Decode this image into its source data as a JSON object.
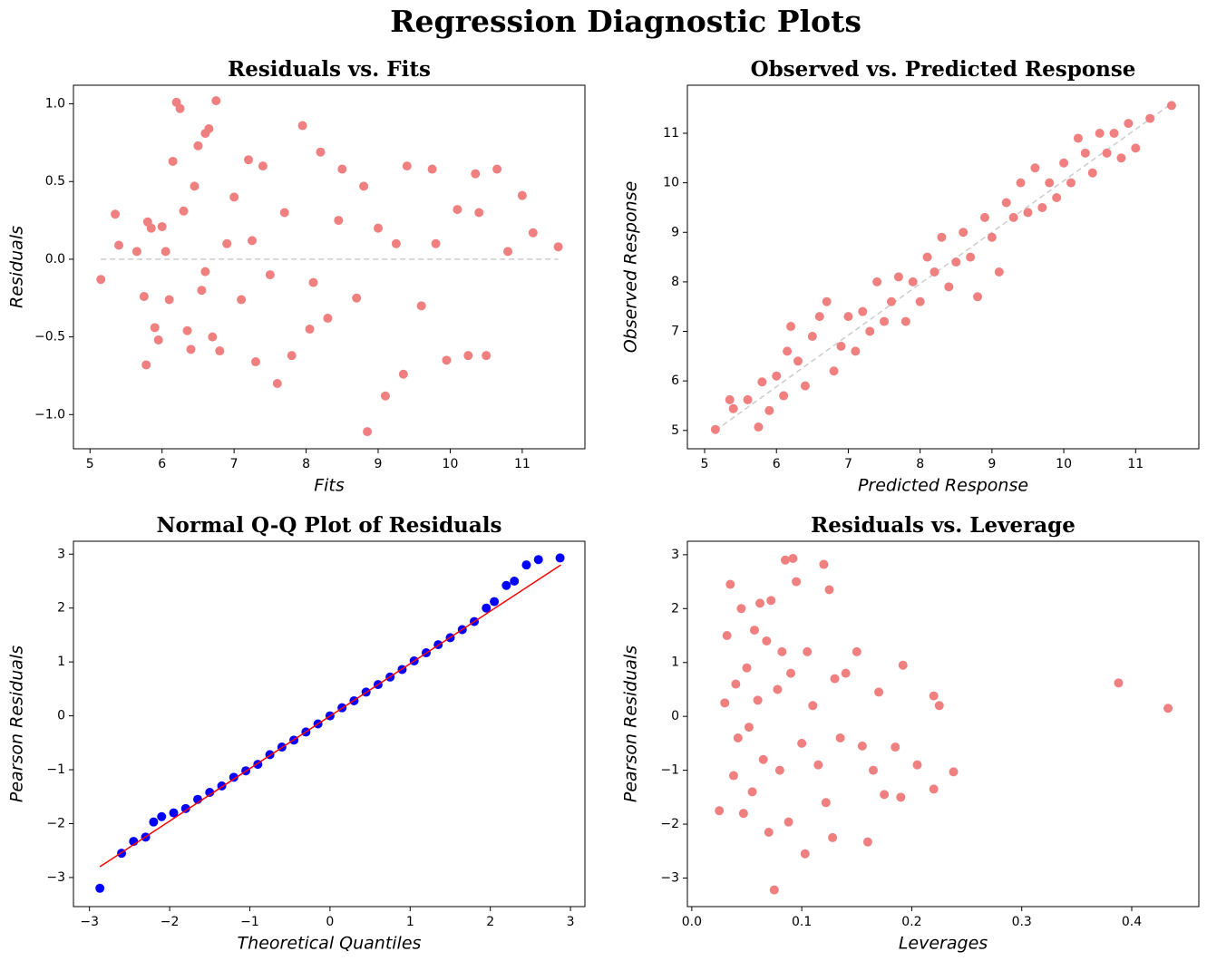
{
  "title": "Regression Diagnostic Plots",
  "chart_data": [
    {
      "type": "scatter",
      "title": "Residuals vs. Fits",
      "xlabel": "Fits",
      "ylabel": "Residuals",
      "color": "#f08080",
      "xlim": [
        4.77,
        11.87
      ],
      "ylim": [
        -1.22,
        1.12
      ],
      "xticks": [
        5,
        6,
        7,
        8,
        9,
        10,
        11
      ],
      "yticks": [
        {
          "value": -1.0,
          "label": "−1.0"
        },
        {
          "value": -0.5,
          "label": "−0.5"
        },
        {
          "value": 0.0,
          "label": "0.0"
        },
        {
          "value": 0.5,
          "label": "0.5"
        },
        {
          "value": 1.0,
          "label": "1.0"
        }
      ],
      "x": [
        5.15,
        5.35,
        5.4,
        5.65,
        5.75,
        5.78,
        5.8,
        5.85,
        5.9,
        5.95,
        6.0,
        6.05,
        6.1,
        6.15,
        6.2,
        6.25,
        6.3,
        6.35,
        6.4,
        6.45,
        6.5,
        6.55,
        6.6,
        6.65,
        6.7,
        6.75,
        6.8,
        6.9,
        7.0,
        7.1,
        7.2,
        7.3,
        7.4,
        7.5,
        7.6,
        7.7,
        7.8,
        7.95,
        8.05,
        8.2,
        8.3,
        8.45,
        8.5,
        8.7,
        8.8,
        8.85,
        9.0,
        9.1,
        9.25,
        9.35,
        9.4,
        9.6,
        9.75,
        9.95,
        10.1,
        10.25,
        10.35,
        10.5,
        10.65,
        10.8,
        11.0,
        11.15,
        11.5,
        10.4,
        9.8,
        8.1,
        7.25,
        6.6
      ],
      "y": [
        -0.13,
        0.29,
        0.09,
        0.05,
        -0.24,
        -0.68,
        0.24,
        0.2,
        -0.44,
        -0.52,
        0.21,
        0.05,
        -0.26,
        0.63,
        1.01,
        0.97,
        0.31,
        -0.46,
        -0.58,
        0.47,
        0.73,
        -0.2,
        0.81,
        0.84,
        -0.5,
        1.02,
        -0.59,
        0.1,
        0.4,
        -0.26,
        0.64,
        -0.66,
        0.6,
        -0.1,
        -0.8,
        0.3,
        -0.62,
        0.86,
        -0.45,
        0.69,
        -0.38,
        0.25,
        0.58,
        -0.25,
        0.47,
        -1.11,
        0.2,
        -0.88,
        0.1,
        -0.74,
        0.6,
        -0.3,
        0.58,
        -0.65,
        0.32,
        -0.62,
        0.55,
        -0.62,
        0.58,
        0.05,
        0.41,
        0.17,
        0.08,
        0.3,
        0.1,
        -0.15,
        0.12,
        -0.08
      ],
      "reference_line": {
        "x": [
          5.15,
          11.5
        ],
        "y": [
          0,
          0
        ],
        "color": "#cccccc",
        "style": "dashed"
      }
    },
    {
      "type": "scatter",
      "title": "Observed vs. Predicted Response",
      "xlabel": "Predicted Response",
      "ylabel": "Observed Response",
      "color": "#f08080",
      "xlim": [
        4.76,
        11.88
      ],
      "ylim": [
        4.63,
        11.97
      ],
      "xticks": [
        5,
        6,
        7,
        8,
        9,
        10,
        11
      ],
      "yticks": [
        5,
        6,
        7,
        8,
        9,
        10,
        11
      ],
      "x": [
        5.15,
        5.35,
        5.4,
        5.6,
        5.75,
        5.8,
        5.9,
        6.0,
        6.1,
        6.15,
        6.2,
        6.3,
        6.4,
        6.5,
        6.6,
        6.7,
        6.8,
        6.9,
        7.0,
        7.1,
        7.2,
        7.3,
        7.4,
        7.5,
        7.6,
        7.7,
        7.8,
        7.9,
        8.0,
        8.1,
        8.2,
        8.3,
        8.4,
        8.5,
        8.6,
        8.7,
        8.8,
        8.9,
        9.0,
        9.1,
        9.2,
        9.3,
        9.4,
        9.5,
        9.6,
        9.7,
        9.8,
        9.9,
        10.0,
        10.1,
        10.2,
        10.3,
        10.4,
        10.5,
        10.6,
        10.7,
        10.8,
        10.9,
        11.0,
        11.2,
        11.5
      ],
      "y": [
        5.02,
        5.62,
        5.44,
        5.62,
        5.07,
        5.98,
        5.4,
        6.1,
        5.7,
        6.6,
        7.1,
        6.4,
        5.9,
        6.9,
        7.3,
        7.6,
        6.2,
        6.7,
        7.3,
        6.6,
        7.4,
        7.0,
        8.0,
        7.2,
        7.6,
        8.1,
        7.2,
        8.0,
        7.6,
        8.5,
        8.2,
        8.9,
        7.9,
        8.4,
        9.0,
        8.5,
        7.7,
        9.3,
        8.9,
        8.2,
        9.6,
        9.3,
        10.0,
        9.4,
        10.3,
        9.5,
        10.0,
        9.7,
        10.4,
        10.0,
        10.9,
        10.6,
        10.2,
        11.0,
        10.6,
        11.0,
        10.5,
        11.2,
        10.7,
        11.3,
        11.56
      ],
      "reference_line": {
        "x": [
          5.15,
          11.5
        ],
        "y": [
          5.0,
          11.6
        ],
        "color": "#cccccc",
        "style": "dashed"
      }
    },
    {
      "type": "scatter",
      "title": "Normal Q-Q Plot of Residuals",
      "xlabel": "Theoretical Quantiles",
      "ylabel": "Pearson Residuals",
      "color": "#0000ff",
      "xlim": [
        -3.2,
        3.18
      ],
      "ylim": [
        -3.54,
        3.24
      ],
      "xticks": [
        {
          "value": -3,
          "label": "−3"
        },
        {
          "value": -2,
          "label": "−2"
        },
        {
          "value": -1,
          "label": "−1"
        },
        0,
        1,
        2,
        3
      ],
      "yticks": [
        {
          "value": -3,
          "label": "−3"
        },
        {
          "value": -2,
          "label": "−2"
        },
        {
          "value": -1,
          "label": "−1"
        },
        0,
        1,
        2,
        3
      ],
      "x": [
        -2.87,
        -2.6,
        -2.45,
        -2.3,
        -2.2,
        -2.1,
        -1.95,
        -1.8,
        -1.65,
        -1.5,
        -1.35,
        -1.2,
        -1.05,
        -0.9,
        -0.75,
        -0.6,
        -0.45,
        -0.3,
        -0.15,
        0,
        0.15,
        0.3,
        0.45,
        0.6,
        0.75,
        0.9,
        1.05,
        1.2,
        1.35,
        1.5,
        1.65,
        1.8,
        1.95,
        2.05,
        2.2,
        2.3,
        2.45,
        2.6,
        2.87
      ],
      "y": [
        -3.2,
        -2.55,
        -2.33,
        -2.25,
        -1.97,
        -1.87,
        -1.8,
        -1.72,
        -1.55,
        -1.42,
        -1.3,
        -1.14,
        -1.02,
        -0.9,
        -0.72,
        -0.58,
        -0.45,
        -0.3,
        -0.15,
        0.0,
        0.15,
        0.28,
        0.44,
        0.58,
        0.72,
        0.86,
        1.02,
        1.17,
        1.32,
        1.45,
        1.6,
        1.75,
        2.0,
        2.12,
        2.42,
        2.5,
        2.8,
        2.9,
        2.93
      ],
      "reference_line": {
        "x": [
          -2.87,
          2.88
        ],
        "y": [
          -2.8,
          2.8
        ],
        "color": "#ff0000",
        "style": "solid"
      }
    },
    {
      "type": "scatter",
      "title": "Residuals vs. Leverage",
      "xlabel": "Leverages",
      "ylabel": "Pearson Residuals",
      "color": "#f08080",
      "xlim": [
        -0.004,
        0.461
      ],
      "ylim": [
        -3.53,
        3.25
      ],
      "xticks": [
        {
          "value": 0.0,
          "label": "0.0"
        },
        {
          "value": 0.1,
          "label": "0.1"
        },
        {
          "value": 0.2,
          "label": "0.2"
        },
        {
          "value": 0.3,
          "label": "0.3"
        },
        {
          "value": 0.4,
          "label": "0.4"
        }
      ],
      "yticks": [
        {
          "value": -3,
          "label": "−3"
        },
        {
          "value": -2,
          "label": "−2"
        },
        {
          "value": -1,
          "label": "−1"
        },
        0,
        1,
        2,
        3
      ],
      "x": [
        0.025,
        0.03,
        0.032,
        0.035,
        0.038,
        0.04,
        0.042,
        0.045,
        0.047,
        0.05,
        0.052,
        0.055,
        0.057,
        0.06,
        0.062,
        0.065,
        0.068,
        0.07,
        0.072,
        0.075,
        0.078,
        0.08,
        0.082,
        0.085,
        0.088,
        0.09,
        0.092,
        0.095,
        0.1,
        0.103,
        0.105,
        0.11,
        0.115,
        0.12,
        0.122,
        0.125,
        0.128,
        0.13,
        0.135,
        0.14,
        0.15,
        0.155,
        0.16,
        0.165,
        0.17,
        0.175,
        0.185,
        0.19,
        0.192,
        0.205,
        0.22,
        0.22,
        0.225,
        0.238,
        0.388,
        0.433
      ],
      "y": [
        -1.75,
        0.25,
        1.5,
        2.45,
        -1.1,
        0.6,
        -0.4,
        2.0,
        -1.8,
        0.9,
        -0.2,
        -1.4,
        1.6,
        0.3,
        2.1,
        -0.8,
        1.4,
        -2.15,
        2.15,
        -3.22,
        0.5,
        -1.0,
        1.2,
        2.9,
        -1.96,
        0.8,
        2.93,
        2.5,
        -0.5,
        -2.55,
        1.2,
        0.2,
        -0.9,
        2.82,
        -1.6,
        2.35,
        -2.25,
        0.7,
        -0.4,
        0.8,
        1.2,
        -0.55,
        -2.33,
        -1.0,
        0.45,
        -1.45,
        -0.57,
        -1.5,
        0.95,
        -0.9,
        0.38,
        -1.35,
        0.2,
        -1.03,
        0.62,
        0.15
      ]
    }
  ]
}
